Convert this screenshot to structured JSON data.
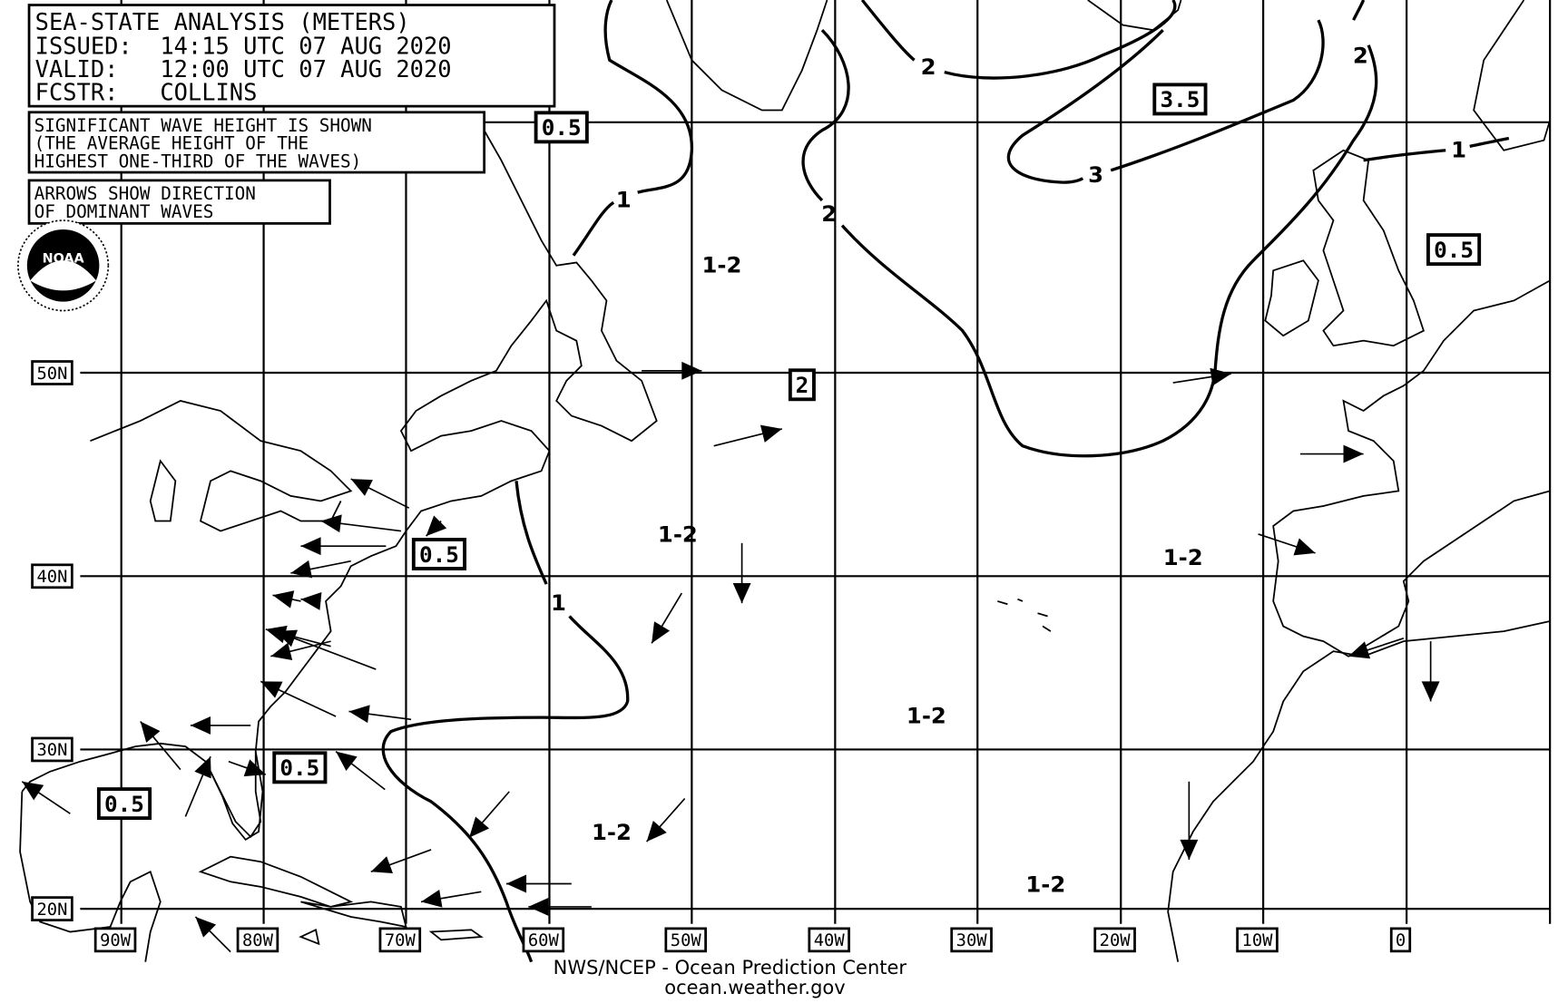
{
  "header": {
    "title": "SEA-STATE ANALYSIS (METERS)",
    "issued": "ISSUED:  14:15 UTC 07 AUG 2020",
    "valid": "VALID:   12:00 UTC 07 AUG 2020",
    "forecaster": "FCSTR:   COLLINS"
  },
  "notes": {
    "line1": "SIGNIFICANT WAVE HEIGHT IS SHOWN",
    "line2": "(THE AVERAGE HEIGHT OF THE",
    "line3": "HIGHEST ONE-THIRD OF THE WAVES)",
    "arrows1": "ARROWS SHOW DIRECTION",
    "arrows2": "OF DOMINANT WAVES"
  },
  "logo": {
    "text": "NOAA",
    "ring": "NATIONAL OCEANIC AND ATMOSPHERIC ADMINISTRATION · U.S. DEPARTMENT OF COMMERCE"
  },
  "latitude_labels": [
    "50N",
    "40N",
    "30N",
    "20N"
  ],
  "longitude_labels": [
    "90W",
    "80W",
    "70W",
    "60W",
    "50W",
    "40W",
    "30W",
    "20W",
    "10W",
    "0"
  ],
  "boxed_heights": [
    "0.5",
    "3.5",
    "0.5",
    "2",
    "0.5",
    "0.5",
    "0.5"
  ],
  "region_labels": [
    "1-2",
    "1-2",
    "1-2",
    "1-2",
    "1-2",
    "1-2"
  ],
  "contour_labels": [
    "1",
    "2",
    "2",
    "2",
    "3",
    "1",
    "1"
  ],
  "footer": {
    "credit": "NWS/NCEP - Ocean Prediction Center",
    "url": "ocean.weather.gov"
  }
}
